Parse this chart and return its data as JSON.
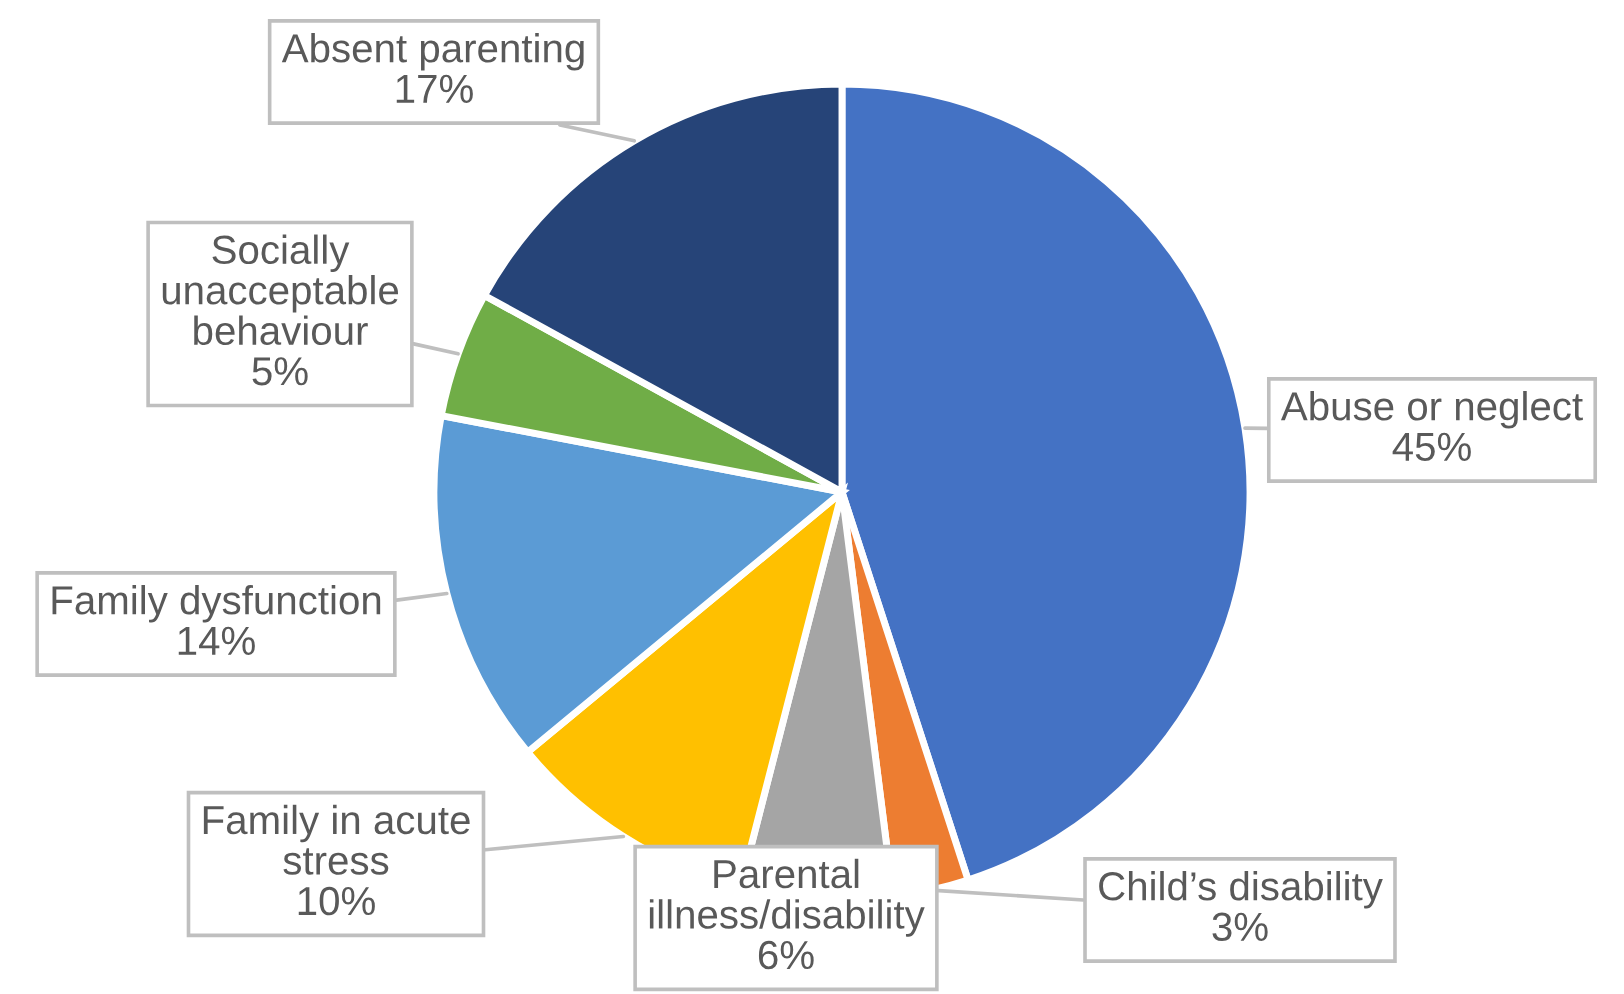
{
  "chart_data": {
    "type": "pie",
    "categories": [
      "Abuse or neglect",
      "Child’s disability",
      "Parental\nillness/disability",
      "Family in acute\nstress",
      "Family dysfunction",
      "Socially\nunacceptable\nbehaviour",
      "Absent parenting"
    ],
    "values": [
      45,
      3,
      6,
      10,
      14,
      5,
      17
    ],
    "colors": [
      "#4472c4",
      "#ed7d31",
      "#a5a5a5",
      "#ffc000",
      "#5b9bd5",
      "#70ad47",
      "#264478"
    ],
    "value_labels": [
      "45%",
      "3%",
      "6%",
      "10%",
      "14%",
      "5%",
      "17%"
    ]
  }
}
